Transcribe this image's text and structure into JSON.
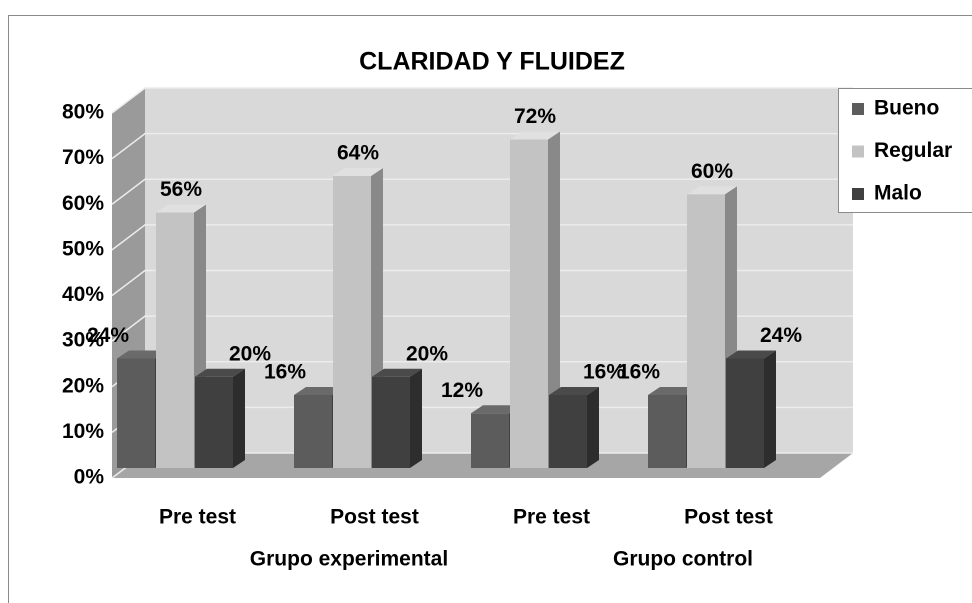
{
  "chart_data": {
    "type": "bar3d",
    "title": "CLARIDAD Y FLUIDEZ",
    "categories": [
      "Pre test",
      "Post test",
      "Pre test",
      "Post test"
    ],
    "category_groups": [
      "Grupo experimental",
      "Grupo control"
    ],
    "series": [
      {
        "name": "Bueno",
        "color": "#5c5c5c",
        "values": [
          24,
          16,
          12,
          16
        ],
        "value_labels": [
          "24%",
          "16%",
          "12%",
          "16%"
        ]
      },
      {
        "name": "Regular",
        "color": "#c3c3c3",
        "values": [
          56,
          64,
          72,
          60
        ],
        "value_labels": [
          "56%",
          "64%",
          "72%",
          "60%"
        ]
      },
      {
        "name": "Malo",
        "color": "#404040",
        "values": [
          20,
          20,
          16,
          24
        ],
        "value_labels": [
          "20%",
          "20%",
          "16%",
          "24%"
        ]
      }
    ],
    "ylim": [
      0,
      80
    ],
    "yticks": [
      {
        "value": 0,
        "label": "0%"
      },
      {
        "value": 10,
        "label": "10%"
      },
      {
        "value": 20,
        "label": "20%"
      },
      {
        "value": 30,
        "label": "30%"
      },
      {
        "value": 40,
        "label": "40%"
      },
      {
        "value": 50,
        "label": "50%"
      },
      {
        "value": 60,
        "label": "60%"
      },
      {
        "value": 70,
        "label": "70%"
      },
      {
        "value": 80,
        "label": "80%"
      }
    ],
    "grid": true,
    "legend": "right"
  }
}
